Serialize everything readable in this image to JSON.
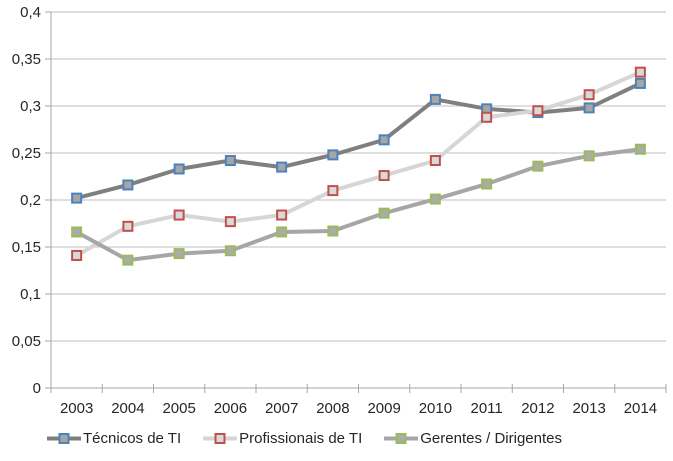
{
  "chart_data": {
    "type": "line",
    "title": "",
    "xlabel": "",
    "ylabel": "",
    "x_categories": [
      "2003",
      "2004",
      "2005",
      "2006",
      "2007",
      "2008",
      "2009",
      "2010",
      "2011",
      "2012",
      "2013",
      "2014"
    ],
    "series": [
      {
        "name": "Técnicos de TI",
        "values": [
          0.202,
          0.216,
          0.233,
          0.242,
          0.235,
          0.248,
          0.264,
          0.307,
          0.297,
          0.293,
          0.298,
          0.324
        ],
        "line_color": "#7F7F7F",
        "marker_fill": "#A6A6A6",
        "marker_border": "#4F81BD",
        "marker_shape": "square"
      },
      {
        "name": "Profissionais de TI",
        "values": [
          0.141,
          0.172,
          0.184,
          0.177,
          0.184,
          0.21,
          0.226,
          0.242,
          0.288,
          0.295,
          0.312,
          0.336
        ],
        "line_color": "#D6D6D6",
        "marker_fill": "#D9D9D9",
        "marker_border": "#C0504D",
        "marker_shape": "square"
      },
      {
        "name": "Gerentes / Dirigentes",
        "values": [
          0.166,
          0.136,
          0.143,
          0.146,
          0.166,
          0.167,
          0.186,
          0.201,
          0.217,
          0.236,
          0.247,
          0.254
        ],
        "line_color": "#A6A6A6",
        "marker_fill": "#ABABAB",
        "marker_border": "#9BBB59",
        "marker_shape": "square"
      }
    ],
    "ylim": [
      0,
      0.4
    ],
    "ytick_step": 0.05,
    "ytick_labels": [
      "0",
      "0,05",
      "0,1",
      "0,15",
      "0,2",
      "0,25",
      "0,3",
      "0,35",
      "0,4"
    ],
    "decimal_separator": ",",
    "grid": true,
    "legend_position": "bottom",
    "colors": {
      "gridline": "#BFBFBF",
      "axis": "#A6A6A6",
      "text": "#262626",
      "background": "#FFFFFF"
    }
  }
}
